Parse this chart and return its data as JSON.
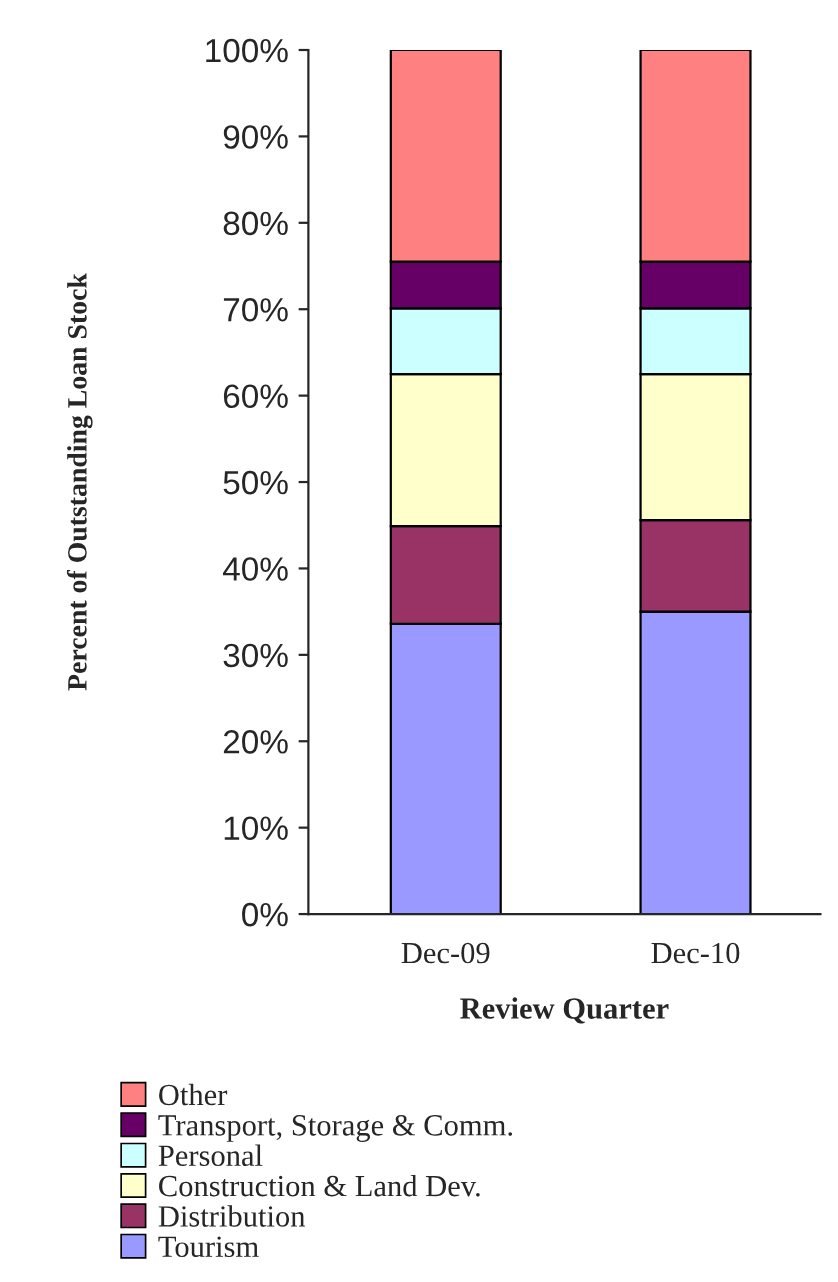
{
  "chart_data": {
    "type": "bar",
    "stacked": true,
    "xlabel": "Review Quarter",
    "ylabel": "Percent of Outstanding Loan Stock",
    "categories": [
      "Dec-09",
      "Dec-10"
    ],
    "series": [
      {
        "name": "Tourism",
        "color": "#9999ff",
        "values": [
          33.6,
          35.0
        ]
      },
      {
        "name": "Distribution",
        "color": "#993366",
        "values": [
          11.3,
          10.6
        ]
      },
      {
        "name": "Construction & Land Dev.",
        "color": "#ffffcc",
        "values": [
          17.6,
          16.9
        ]
      },
      {
        "name": "Personal",
        "color": "#ccffff",
        "values": [
          7.6,
          7.6
        ]
      },
      {
        "name": "Transport, Storage & Comm.",
        "color": "#660066",
        "values": [
          5.4,
          5.4
        ]
      },
      {
        "name": "Other",
        "color": "#ff8080",
        "values": [
          24.5,
          24.5
        ]
      }
    ],
    "ylim": [
      0,
      100
    ],
    "yticks": [
      {
        "value": 0,
        "label": "0%"
      },
      {
        "value": 10,
        "label": "10%"
      },
      {
        "value": 20,
        "label": "20%"
      },
      {
        "value": 30,
        "label": "30%"
      },
      {
        "value": 40,
        "label": "40%"
      },
      {
        "value": 50,
        "label": "50%"
      },
      {
        "value": 60,
        "label": "60%"
      },
      {
        "value": 70,
        "label": "70%"
      },
      {
        "value": 80,
        "label": "80%"
      },
      {
        "value": 90,
        "label": "90%"
      },
      {
        "value": 100,
        "label": "100%"
      }
    ],
    "grid": false,
    "legend": "bottom left"
  }
}
